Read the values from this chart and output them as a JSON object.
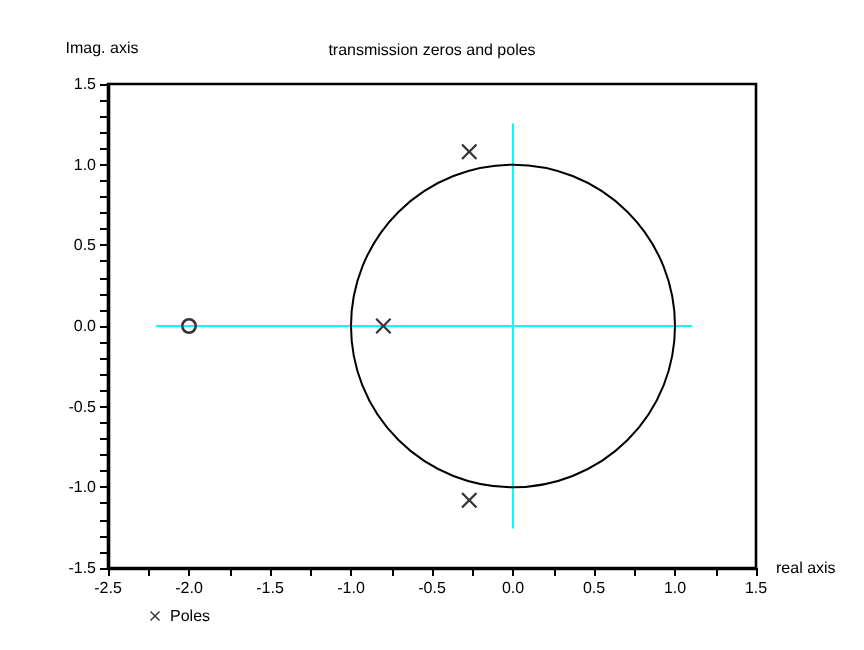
{
  "chart_data": {
    "type": "scatter",
    "title": "transmission zeros and poles",
    "xlabel": "real axis",
    "ylabel": "Imag. axis",
    "xlim": [
      -2.5,
      1.5
    ],
    "ylim": [
      -1.5,
      1.5
    ],
    "xticks": [
      {
        "value": -2.5,
        "label": "-2.5"
      },
      {
        "value": -2.25,
        "label": null
      },
      {
        "value": -2.0,
        "label": "-2.0"
      },
      {
        "value": -1.75,
        "label": null
      },
      {
        "value": -1.5,
        "label": "-1.5"
      },
      {
        "value": -1.25,
        "label": null
      },
      {
        "value": -1.0,
        "label": "-1.0"
      },
      {
        "value": -0.75,
        "label": null
      },
      {
        "value": -0.5,
        "label": "-0.5"
      },
      {
        "value": -0.25,
        "label": null
      },
      {
        "value": 0,
        "label": "0.0"
      },
      {
        "value": 0.25,
        "label": null
      },
      {
        "value": 0.5,
        "label": "0.5"
      },
      {
        "value": 0.75,
        "label": null
      },
      {
        "value": 1.0,
        "label": "1.0"
      },
      {
        "value": 1.25,
        "label": null
      },
      {
        "value": 1.5,
        "label": "1.5"
      }
    ],
    "yticks": [
      {
        "value": -1.5,
        "label": "-1.5"
      },
      {
        "value": -1.4,
        "label": null
      },
      {
        "value": -1.3,
        "label": null
      },
      {
        "value": -1.2,
        "label": null
      },
      {
        "value": -1.1,
        "label": null
      },
      {
        "value": -1.0,
        "label": "-1.0"
      },
      {
        "value": -0.9,
        "label": null
      },
      {
        "value": -0.8,
        "label": null
      },
      {
        "value": -0.7,
        "label": null
      },
      {
        "value": -0.6,
        "label": null
      },
      {
        "value": -0.5,
        "label": "-0.5"
      },
      {
        "value": -0.4,
        "label": null
      },
      {
        "value": -0.3,
        "label": null
      },
      {
        "value": -0.2,
        "label": null
      },
      {
        "value": -0.1,
        "label": null
      },
      {
        "value": 0,
        "label": "0.0"
      },
      {
        "value": 0.1,
        "label": null
      },
      {
        "value": 0.2,
        "label": null
      },
      {
        "value": 0.3,
        "label": null
      },
      {
        "value": 0.4,
        "label": null
      },
      {
        "value": 0.5,
        "label": "0.5"
      },
      {
        "value": 0.6,
        "label": null
      },
      {
        "value": 0.7,
        "label": null
      },
      {
        "value": 0.8,
        "label": null
      },
      {
        "value": 0.9,
        "label": null
      },
      {
        "value": 1.0,
        "label": "1.0"
      },
      {
        "value": 1.1,
        "label": null
      },
      {
        "value": 1.2,
        "label": null
      },
      {
        "value": 1.3,
        "label": null
      },
      {
        "value": 1.4,
        "label": null
      },
      {
        "value": 1.5,
        "label": "1.5"
      }
    ],
    "grid": false,
    "legend": "bottom left",
    "series": [
      {
        "type": "line",
        "color": "#00ffff",
        "marker": "none",
        "x": [
          -2.2,
          1.1
        ],
        "values": [
          0,
          0
        ]
      },
      {
        "type": "line",
        "color": "#00ffff",
        "marker": "none",
        "x": [
          0,
          0
        ],
        "values": [
          -1.25,
          1.25
        ]
      },
      {
        "color": "#000000",
        "marker": "circle",
        "x": [
          -2.0
        ],
        "values": [
          0
        ]
      },
      {
        "name": "Poles",
        "color": "#000000",
        "marker": "cross",
        "x": [
          -0.8,
          -0.27,
          -0.27
        ],
        "values": [
          0,
          1.08,
          -1.08
        ]
      }
    ]
  }
}
